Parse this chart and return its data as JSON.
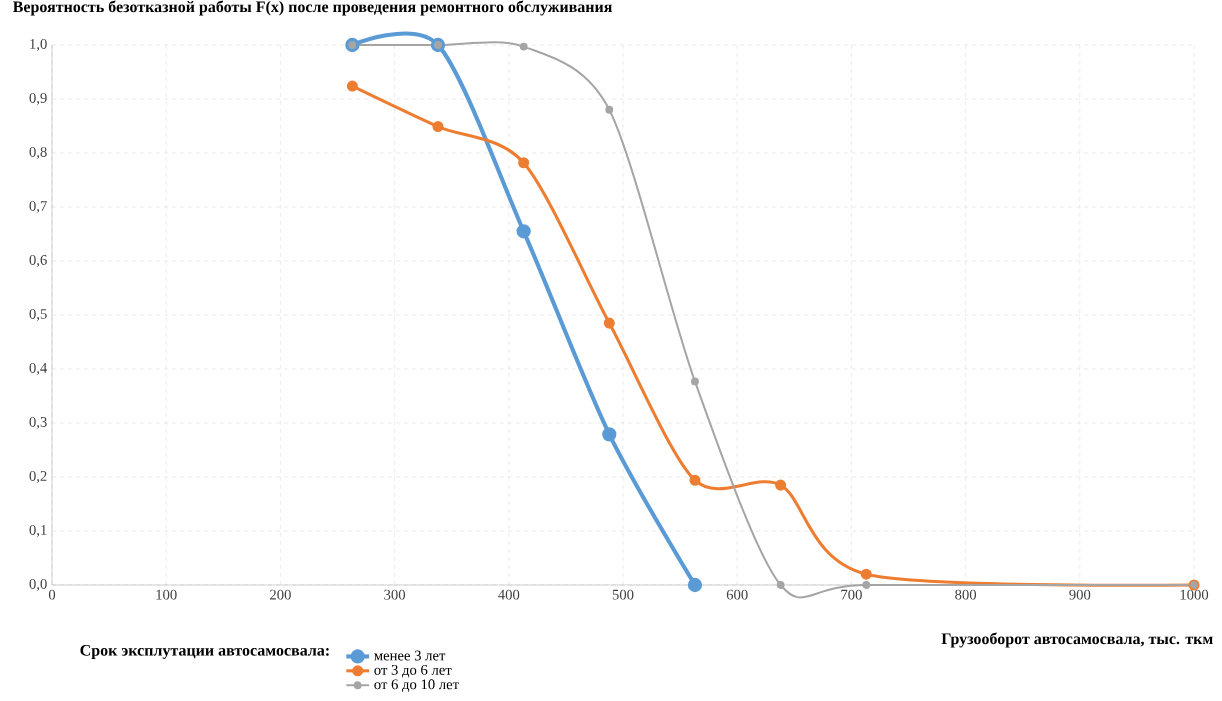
{
  "chart_data": {
    "type": "line",
    "title": "Вероятность безотказной работы F(x) после проведения ремонтного обслуживания",
    "xlabel": "Грузооборот автосамосвала, тыс. ткм",
    "legend_title": "Срок эксплутации автосамосвала:",
    "series": [
      {
        "name": "менее 3 лет",
        "color": "#5b9bd5",
        "x": [
          263,
          338,
          413,
          488,
          563
        ],
        "values": [
          1.0,
          1.0,
          0.655,
          0.279,
          0.0
        ]
      },
      {
        "name": "от 3 до 6 лет",
        "color": "#ed7d31",
        "x": [
          263,
          338,
          413,
          488,
          563,
          638,
          713,
          1000
        ],
        "values": [
          0.924,
          0.849,
          0.782,
          0.485,
          0.194,
          0.185,
          0.02,
          0.0
        ]
      },
      {
        "name": "от 6 до 10 лет",
        "color": "#a5a5a5",
        "x": [
          263,
          338,
          413,
          488,
          563,
          638,
          713,
          1000
        ],
        "values": [
          1.0,
          1.0,
          0.997,
          0.88,
          0.377,
          0.0,
          0.0,
          0.0
        ]
      }
    ],
    "xlim": [
      0,
      1000
    ],
    "xticks": [
      0,
      100,
      200,
      300,
      400,
      500,
      600,
      700,
      800,
      900,
      1000
    ],
    "ylim": [
      0,
      1.0
    ],
    "yticks": [
      {
        "value": 0,
        "label": "0,0"
      },
      {
        "value": 0.1,
        "label": "0,1"
      },
      {
        "value": 0.2,
        "label": "0,2"
      },
      {
        "value": 0.3,
        "label": "0,3"
      },
      {
        "value": 0.4,
        "label": "0,4"
      },
      {
        "value": 0.5,
        "label": "0,5"
      },
      {
        "value": 0.6,
        "label": "0,6"
      },
      {
        "value": 0.7,
        "label": "0,7"
      },
      {
        "value": 0.8,
        "label": "0,8"
      },
      {
        "value": 0.9,
        "label": "0,9"
      },
      {
        "value": 1.0,
        "label": "1,0"
      }
    ],
    "grid": true,
    "legend": "bottom",
    "marker": "circle",
    "line_style": "solid"
  }
}
